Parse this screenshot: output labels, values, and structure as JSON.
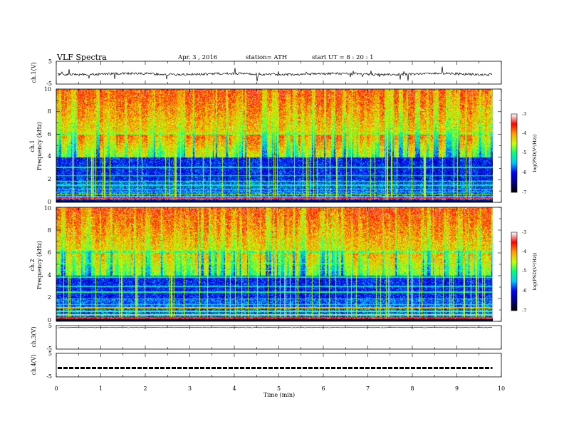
{
  "header": {
    "title": "VLF  Spectra",
    "date": "Apr. 3  , 2016",
    "station": "station= ATH",
    "start": "start  UT  =   8  : 20 : 1"
  },
  "chart_data": [
    {
      "id": "ch1-waveform",
      "type": "line",
      "ylabel": "ch.1(V)",
      "ylim": [
        -5,
        5
      ],
      "yticks": [
        "5",
        "-5"
      ],
      "baseline": -0.6,
      "trace_color": "#000000"
    },
    {
      "id": "ch1-spectrogram",
      "type": "heatmap",
      "ylabel": "Frequency  (kHz)",
      "channel_label": "ch.1",
      "ylim": [
        0,
        10
      ],
      "yticks": [
        "0",
        "2",
        "4",
        "6",
        "8",
        "10"
      ],
      "colorbar": {
        "label": "log(PSD(V²/Hz))",
        "ticks": [
          "-3",
          "-4",
          "-5",
          "-6",
          "-7"
        ],
        "range": [
          -7,
          -3
        ],
        "colors": [
          "#000000",
          "#00008b",
          "#0000ff",
          "#00c8ff",
          "#00ff80",
          "#c8ff00",
          "#ffa000",
          "#ff0000",
          "#ffffff"
        ]
      }
    },
    {
      "id": "ch2-spectrogram",
      "type": "heatmap",
      "ylabel": "Frequency  (kHz)",
      "channel_label": "ch.2",
      "ylim": [
        0,
        10
      ],
      "yticks": [
        "0",
        "2",
        "4",
        "6",
        "8",
        "10"
      ],
      "colorbar": {
        "label": "log(PSD(V²/Hz))",
        "ticks": [
          "-3",
          "-4",
          "-5",
          "-6",
          "-7"
        ],
        "range": [
          -7,
          -3
        ]
      }
    },
    {
      "id": "ch3-waveform",
      "type": "line",
      "ylabel": "ch.3(V)",
      "ylim": [
        -5,
        5
      ],
      "yticks": [
        "5",
        "-5"
      ],
      "baseline": 4.2
    },
    {
      "id": "ch4-waveform",
      "type": "line",
      "ylabel": "ch.4(V)",
      "ylim": [
        -5,
        5
      ],
      "yticks": [
        "5",
        "-5"
      ],
      "baseline": -1.2
    }
  ],
  "time_axis": {
    "xlabel": "Time  (min)",
    "xlim": [
      0,
      10
    ],
    "ticks": [
      "0",
      "1",
      "2",
      "3",
      "4",
      "5",
      "6",
      "7",
      "8",
      "9",
      "10"
    ],
    "data_end": 9.8
  }
}
